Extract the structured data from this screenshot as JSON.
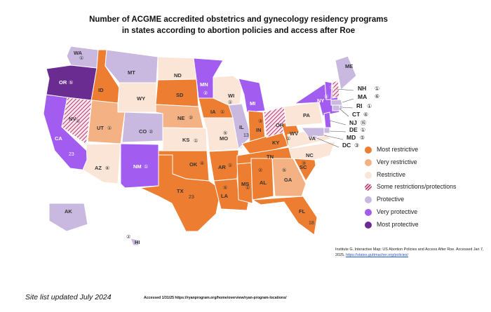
{
  "title_line1": "Number of ACGME accredited obstetrics and gynecology residency programs",
  "title_line2": "in states according to abortion policies and access after Roe",
  "colors": {
    "most_restrictive": "#ed7d31",
    "very_restrictive": "#f4b183",
    "restrictive": "#fbe5d6",
    "some_restrictions_protections": "hatch",
    "protective": "#c9b8e0",
    "very_protective": "#a25df0",
    "most_protective": "#6a2c91"
  },
  "legend": [
    {
      "key": "most_restrictive",
      "label": "Most restrictive"
    },
    {
      "key": "very_restrictive",
      "label": "Very restrictive"
    },
    {
      "key": "restrictive",
      "label": "Restrictive"
    },
    {
      "key": "some_restrictions_protections",
      "label": "Some restrictions/protections"
    },
    {
      "key": "protective",
      "label": "Protective"
    },
    {
      "key": "very_protective",
      "label": "Very protective"
    },
    {
      "key": "most_protective",
      "label": "Most protective"
    }
  ],
  "states": [
    {
      "abbr": "WA",
      "count": "①",
      "category": "protective"
    },
    {
      "abbr": "OR",
      "count": "⑤",
      "category": "most_protective"
    },
    {
      "abbr": "CA",
      "count": "23",
      "category": "very_protective"
    },
    {
      "abbr": "NV",
      "count": "①",
      "category": "some_restrictions_protections"
    },
    {
      "abbr": "ID",
      "count": "",
      "category": "most_restrictive"
    },
    {
      "abbr": "MT",
      "count": "",
      "category": "protective"
    },
    {
      "abbr": "WY",
      "count": "",
      "category": "restrictive"
    },
    {
      "abbr": "UT",
      "count": "①",
      "category": "very_restrictive"
    },
    {
      "abbr": "AZ",
      "count": "⑥",
      "category": "restrictive"
    },
    {
      "abbr": "CO",
      "count": "②",
      "category": "protective"
    },
    {
      "abbr": "NM",
      "count": "①",
      "category": "very_protective"
    },
    {
      "abbr": "ND",
      "count": "",
      "category": "restrictive"
    },
    {
      "abbr": "SD",
      "count": "",
      "category": "most_restrictive"
    },
    {
      "abbr": "NE",
      "count": "②",
      "category": "very_restrictive"
    },
    {
      "abbr": "KS",
      "count": "①",
      "category": "restrictive"
    },
    {
      "abbr": "OK",
      "count": "④",
      "category": "most_restrictive"
    },
    {
      "abbr": "TX",
      "count": "23",
      "category": "most_restrictive"
    },
    {
      "abbr": "MN",
      "count": "②",
      "category": "very_protective"
    },
    {
      "abbr": "IA",
      "count": "①",
      "category": "most_restrictive"
    },
    {
      "abbr": "MO",
      "count": "⑤",
      "category": "restrictive"
    },
    {
      "abbr": "AR",
      "count": "①",
      "category": "most_restrictive"
    },
    {
      "abbr": "LA",
      "count": "⑤",
      "category": "most_restrictive"
    },
    {
      "abbr": "WI",
      "count": "①",
      "category": "restrictive"
    },
    {
      "abbr": "IL",
      "count": "13",
      "category": "protective"
    },
    {
      "abbr": "MS",
      "count": "①",
      "category": "most_restrictive"
    },
    {
      "abbr": "MI",
      "count": "",
      "category": "very_protective"
    },
    {
      "abbr": "IN",
      "count": "③",
      "category": "most_restrictive"
    },
    {
      "abbr": "KY",
      "count": "",
      "category": "most_restrictive"
    },
    {
      "abbr": "TN",
      "count": "",
      "category": "most_restrictive"
    },
    {
      "abbr": "AL",
      "count": "②",
      "category": "most_restrictive"
    },
    {
      "abbr": "OH",
      "count": "",
      "category": "some_restrictions_protections"
    },
    {
      "abbr": "GA",
      "count": "⑤",
      "category": "very_restrictive"
    },
    {
      "abbr": "FL",
      "count": "18",
      "category": "most_restrictive"
    },
    {
      "abbr": "SC",
      "count": "③",
      "category": "most_restrictive"
    },
    {
      "abbr": "NC",
      "count": "",
      "category": "restrictive"
    },
    {
      "abbr": "WV",
      "count": "①",
      "category": "most_restrictive"
    },
    {
      "abbr": "VA",
      "count": "",
      "category": "restrictive"
    },
    {
      "abbr": "PA",
      "count": "",
      "category": "restrictive"
    },
    {
      "abbr": "NY",
      "count": "⑥",
      "category": "very_protective"
    },
    {
      "abbr": "VT",
      "count": "①",
      "category": "very_protective"
    },
    {
      "abbr": "ME",
      "count": "",
      "category": "protective"
    },
    {
      "abbr": "NH",
      "count": "①",
      "category": "some_restrictions_protections"
    },
    {
      "abbr": "MA",
      "count": "⑥",
      "category": "protective"
    },
    {
      "abbr": "RI",
      "count": "①",
      "category": "protective"
    },
    {
      "abbr": "CT",
      "count": "⑥",
      "category": "protective"
    },
    {
      "abbr": "NJ",
      "count": "⑯",
      "category": "very_protective"
    },
    {
      "abbr": "DE",
      "count": "①",
      "category": "protective"
    },
    {
      "abbr": "MD",
      "count": "⑤",
      "category": "protective"
    },
    {
      "abbr": "DC",
      "count": "③",
      "category": "protective"
    },
    {
      "abbr": "AK",
      "count": "",
      "category": "protective"
    },
    {
      "abbr": "HI",
      "count": "②",
      "category": "protective"
    }
  ],
  "citation_text": "Institute G. Interactive Map: US Abortion Policies and Access After Roe. Accessed Jan 7, 2025.",
  "citation_link": "https://states.guttmacher.org/policies/",
  "site_note": "Site list updated July 2024",
  "accessed_note": "Accessed 1/31/25 https://ryanprogram.org/home/overview/ryan-program-locations/"
}
